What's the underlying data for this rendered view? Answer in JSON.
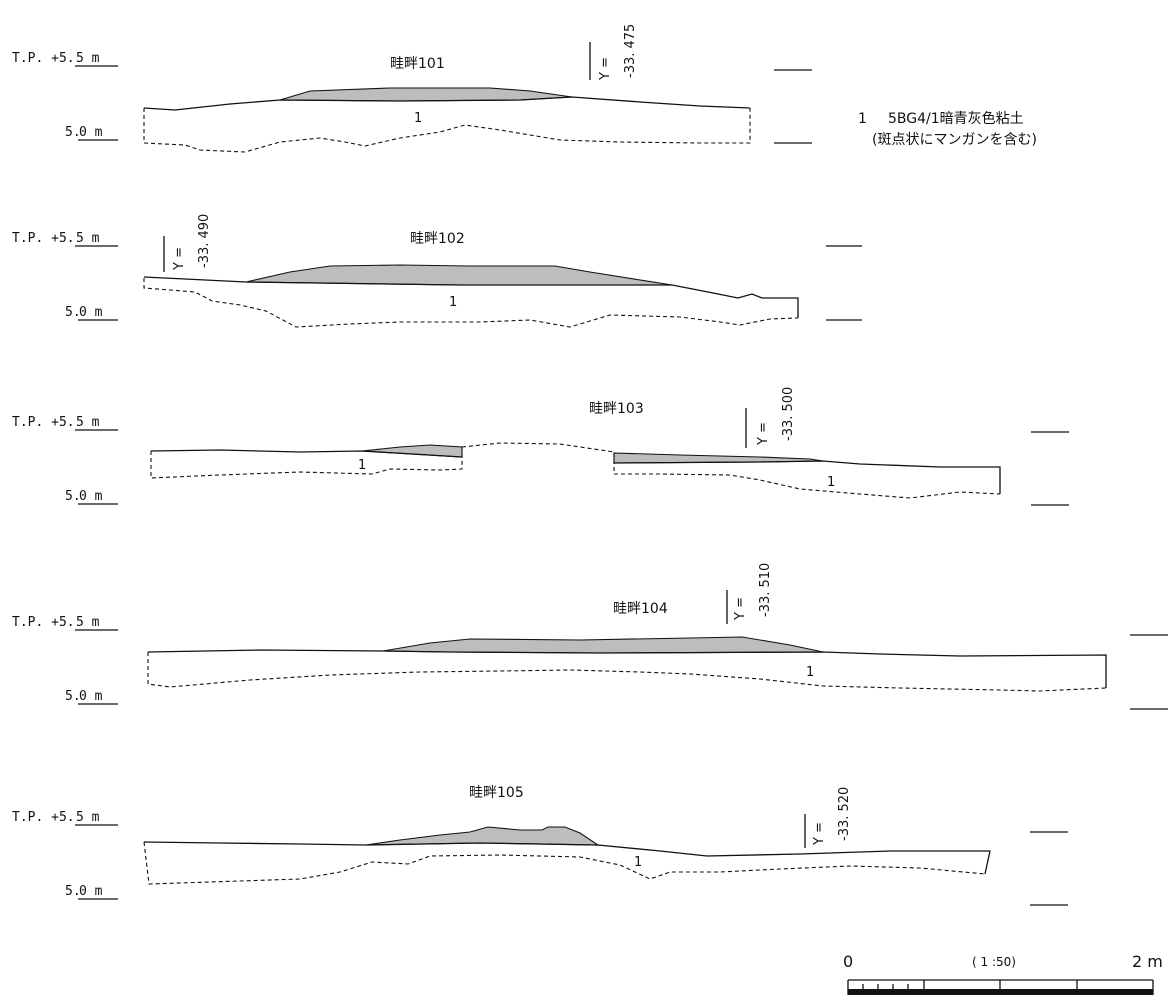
{
  "elevation": {
    "upper_prefix": "T.P. +5.",
    "upper_underline": "5 m",
    "lower_prefix": "5.",
    "lower_underline": "0 m"
  },
  "sections": [
    {
      "name": "畦畔101",
      "y_label": "Y =",
      "y_value": "-33. 475",
      "layer": "1"
    },
    {
      "name": "畦畔102",
      "y_label": "Y =",
      "y_value": "-33. 490",
      "layer": "1"
    },
    {
      "name": "畦畔103",
      "y_label": "Y =",
      "y_value": "-33. 500",
      "layer": "1",
      "layer_b": "1"
    },
    {
      "name": "畦畔104",
      "y_label": "Y =",
      "y_value": "-33. 510",
      "layer": "1"
    },
    {
      "name": "畦畔105",
      "y_label": "Y =",
      "y_value": "-33. 520",
      "layer": "1"
    }
  ],
  "legend": {
    "number": "1",
    "line1": "5BG4/1暗青灰色粘土",
    "line2": "(斑点状にマンガンを含む)"
  },
  "scale_bar": {
    "start": "0",
    "ratio": "( 1 :50)",
    "end": "2 m"
  },
  "colors": {
    "fill": "#bdbdbd",
    "line": "#111111"
  }
}
